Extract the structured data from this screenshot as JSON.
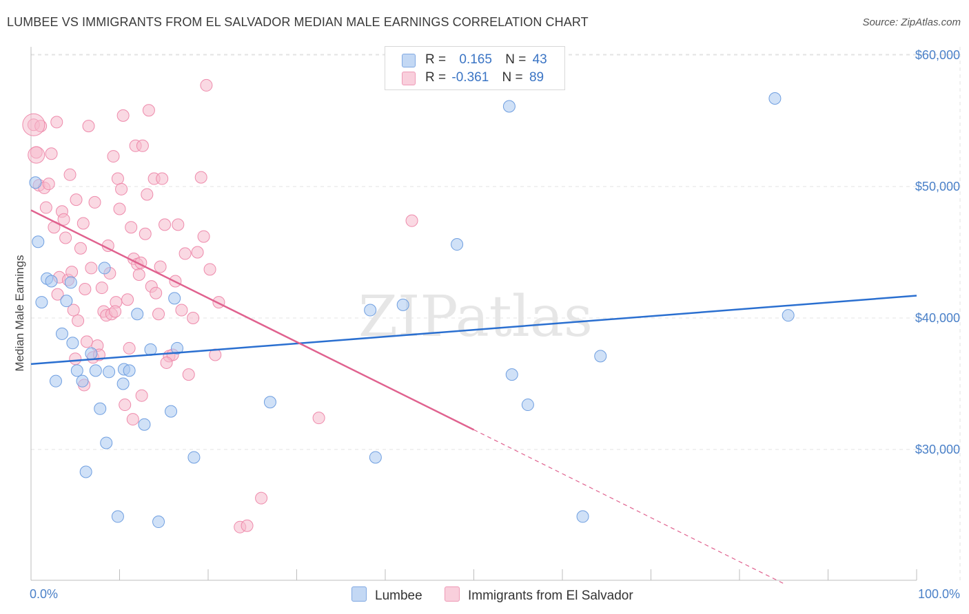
{
  "title": "LUMBEE VS IMMIGRANTS FROM EL SALVADOR MEDIAN MALE EARNINGS CORRELATION CHART",
  "source": "Source: ZipAtlas.com",
  "watermark": "ZIPatlas",
  "colors": {
    "blue_fill": "#a9c8f0",
    "blue_stroke": "#6e9ee0",
    "blue_line": "#2a6fd0",
    "pink_fill": "#f6b9cc",
    "pink_stroke": "#ee8aab",
    "pink_line": "#e0628f",
    "tick_text": "#4a80c8",
    "grid": "#e3e3e3"
  },
  "legend": {
    "rows": [
      {
        "r_label": "R =",
        "r_value": "0.165",
        "n_label": "N =",
        "n_value": "43"
      },
      {
        "r_label": "R =",
        "r_value": "-0.361",
        "n_label": "N =",
        "n_value": "89"
      }
    ]
  },
  "bottom_legend": [
    "Lumbee",
    "Immigrants from El Salvador"
  ],
  "chart_data": {
    "type": "scatter",
    "xlabel": "",
    "ylabel": "Median Male Earnings",
    "xlim": [
      0,
      100
    ],
    "ylim": [
      20000,
      62000
    ],
    "x_tick_labels": [
      "0.0%",
      "100.0%"
    ],
    "y_ticks": [
      30000,
      40000,
      50000,
      60000
    ],
    "y_tick_labels": [
      "$30,000",
      "$40,000",
      "$50,000",
      "$60,000"
    ],
    "grid": true,
    "legend_position": "top-center",
    "series": [
      {
        "name": "Lumbee",
        "color": "blue",
        "trend": {
          "x": [
            0,
            100
          ],
          "y": [
            36500,
            41700
          ]
        },
        "points": [
          [
            0.5,
            50300
          ],
          [
            0.8,
            45800
          ],
          [
            1.2,
            41200
          ],
          [
            1.8,
            43000
          ],
          [
            2.3,
            42800
          ],
          [
            2.8,
            35200
          ],
          [
            3.5,
            38800
          ],
          [
            4.0,
            41300
          ],
          [
            4.5,
            42700
          ],
          [
            4.7,
            38100
          ],
          [
            5.2,
            36000
          ],
          [
            5.8,
            35200
          ],
          [
            6.2,
            28300
          ],
          [
            6.8,
            37300
          ],
          [
            7.3,
            36000
          ],
          [
            7.8,
            33100
          ],
          [
            8.3,
            43800
          ],
          [
            8.5,
            30500
          ],
          [
            8.8,
            35900
          ],
          [
            9.8,
            24900
          ],
          [
            10.4,
            35000
          ],
          [
            10.5,
            36100
          ],
          [
            11.1,
            36000
          ],
          [
            12.0,
            40300
          ],
          [
            12.8,
            31900
          ],
          [
            13.5,
            37600
          ],
          [
            14.4,
            24500
          ],
          [
            15.8,
            32900
          ],
          [
            16.2,
            41500
          ],
          [
            16.5,
            37700
          ],
          [
            18.4,
            29400
          ],
          [
            27.0,
            33600
          ],
          [
            38.3,
            40600
          ],
          [
            38.9,
            29400
          ],
          [
            42.0,
            41000
          ],
          [
            48.1,
            45600
          ],
          [
            54.0,
            56100
          ],
          [
            54.3,
            35700
          ],
          [
            56.1,
            33400
          ],
          [
            62.3,
            24900
          ],
          [
            64.3,
            37100
          ],
          [
            84.0,
            56700
          ],
          [
            85.5,
            40200
          ]
        ]
      },
      {
        "name": "Immigrants from El Salvador",
        "color": "pink",
        "trend": {
          "x": [
            0,
            50
          ],
          "y": [
            48200,
            31500
          ]
        },
        "trend_dashed": {
          "x": [
            50,
            85
          ],
          "y": [
            31500,
            19800
          ]
        },
        "points": [
          [
            0.3,
            54700
          ],
          [
            0.6,
            52600
          ],
          [
            0.9,
            50100
          ],
          [
            1.1,
            54600
          ],
          [
            1.5,
            49900
          ],
          [
            1.7,
            48400
          ],
          [
            2.0,
            50200
          ],
          [
            2.3,
            52500
          ],
          [
            2.6,
            46900
          ],
          [
            2.9,
            54900
          ],
          [
            3.2,
            43100
          ],
          [
            3.5,
            48100
          ],
          [
            3.7,
            47500
          ],
          [
            3.9,
            46100
          ],
          [
            4.2,
            42900
          ],
          [
            4.4,
            50900
          ],
          [
            4.6,
            43500
          ],
          [
            4.8,
            40600
          ],
          [
            5.1,
            49000
          ],
          [
            5.3,
            39800
          ],
          [
            5.6,
            45300
          ],
          [
            5.9,
            47200
          ],
          [
            6.1,
            42200
          ],
          [
            6.3,
            38200
          ],
          [
            6.5,
            54600
          ],
          [
            6.8,
            43800
          ],
          [
            7.0,
            37000
          ],
          [
            7.2,
            48800
          ],
          [
            7.5,
            37900
          ],
          [
            7.7,
            37200
          ],
          [
            8.0,
            42300
          ],
          [
            8.2,
            40500
          ],
          [
            8.5,
            40200
          ],
          [
            8.7,
            45500
          ],
          [
            8.9,
            43400
          ],
          [
            9.1,
            40300
          ],
          [
            9.3,
            52300
          ],
          [
            9.6,
            41200
          ],
          [
            9.8,
            50600
          ],
          [
            10.0,
            48300
          ],
          [
            10.2,
            49800
          ],
          [
            10.4,
            55400
          ],
          [
            10.6,
            33400
          ],
          [
            10.9,
            41400
          ],
          [
            11.1,
            37700
          ],
          [
            11.3,
            46900
          ],
          [
            11.6,
            44500
          ],
          [
            11.8,
            53100
          ],
          [
            12.0,
            44100
          ],
          [
            12.2,
            43300
          ],
          [
            12.4,
            44200
          ],
          [
            12.6,
            53100
          ],
          [
            12.9,
            46400
          ],
          [
            13.1,
            49400
          ],
          [
            13.3,
            55800
          ],
          [
            13.6,
            42400
          ],
          [
            13.9,
            50600
          ],
          [
            14.1,
            41900
          ],
          [
            14.4,
            40300
          ],
          [
            14.6,
            43900
          ],
          [
            14.8,
            50600
          ],
          [
            15.1,
            47100
          ],
          [
            15.6,
            37100
          ],
          [
            16.0,
            37200
          ],
          [
            16.3,
            42800
          ],
          [
            16.6,
            47100
          ],
          [
            17.0,
            40600
          ],
          [
            17.4,
            44900
          ],
          [
            17.8,
            35700
          ],
          [
            18.3,
            40000
          ],
          [
            18.8,
            45000
          ],
          [
            19.2,
            50700
          ],
          [
            19.5,
            46200
          ],
          [
            19.8,
            57700
          ],
          [
            20.2,
            43700
          ],
          [
            20.8,
            37200
          ],
          [
            21.2,
            41200
          ],
          [
            23.6,
            24100
          ],
          [
            24.4,
            24200
          ],
          [
            26.0,
            26300
          ],
          [
            43.0,
            47400
          ],
          [
            32.5,
            32400
          ],
          [
            5.0,
            36900
          ],
          [
            9.5,
            40500
          ],
          [
            11.5,
            32300
          ],
          [
            3.0,
            41800
          ],
          [
            6.0,
            34900
          ],
          [
            12.5,
            34100
          ],
          [
            15.3,
            36600
          ]
        ]
      }
    ]
  }
}
